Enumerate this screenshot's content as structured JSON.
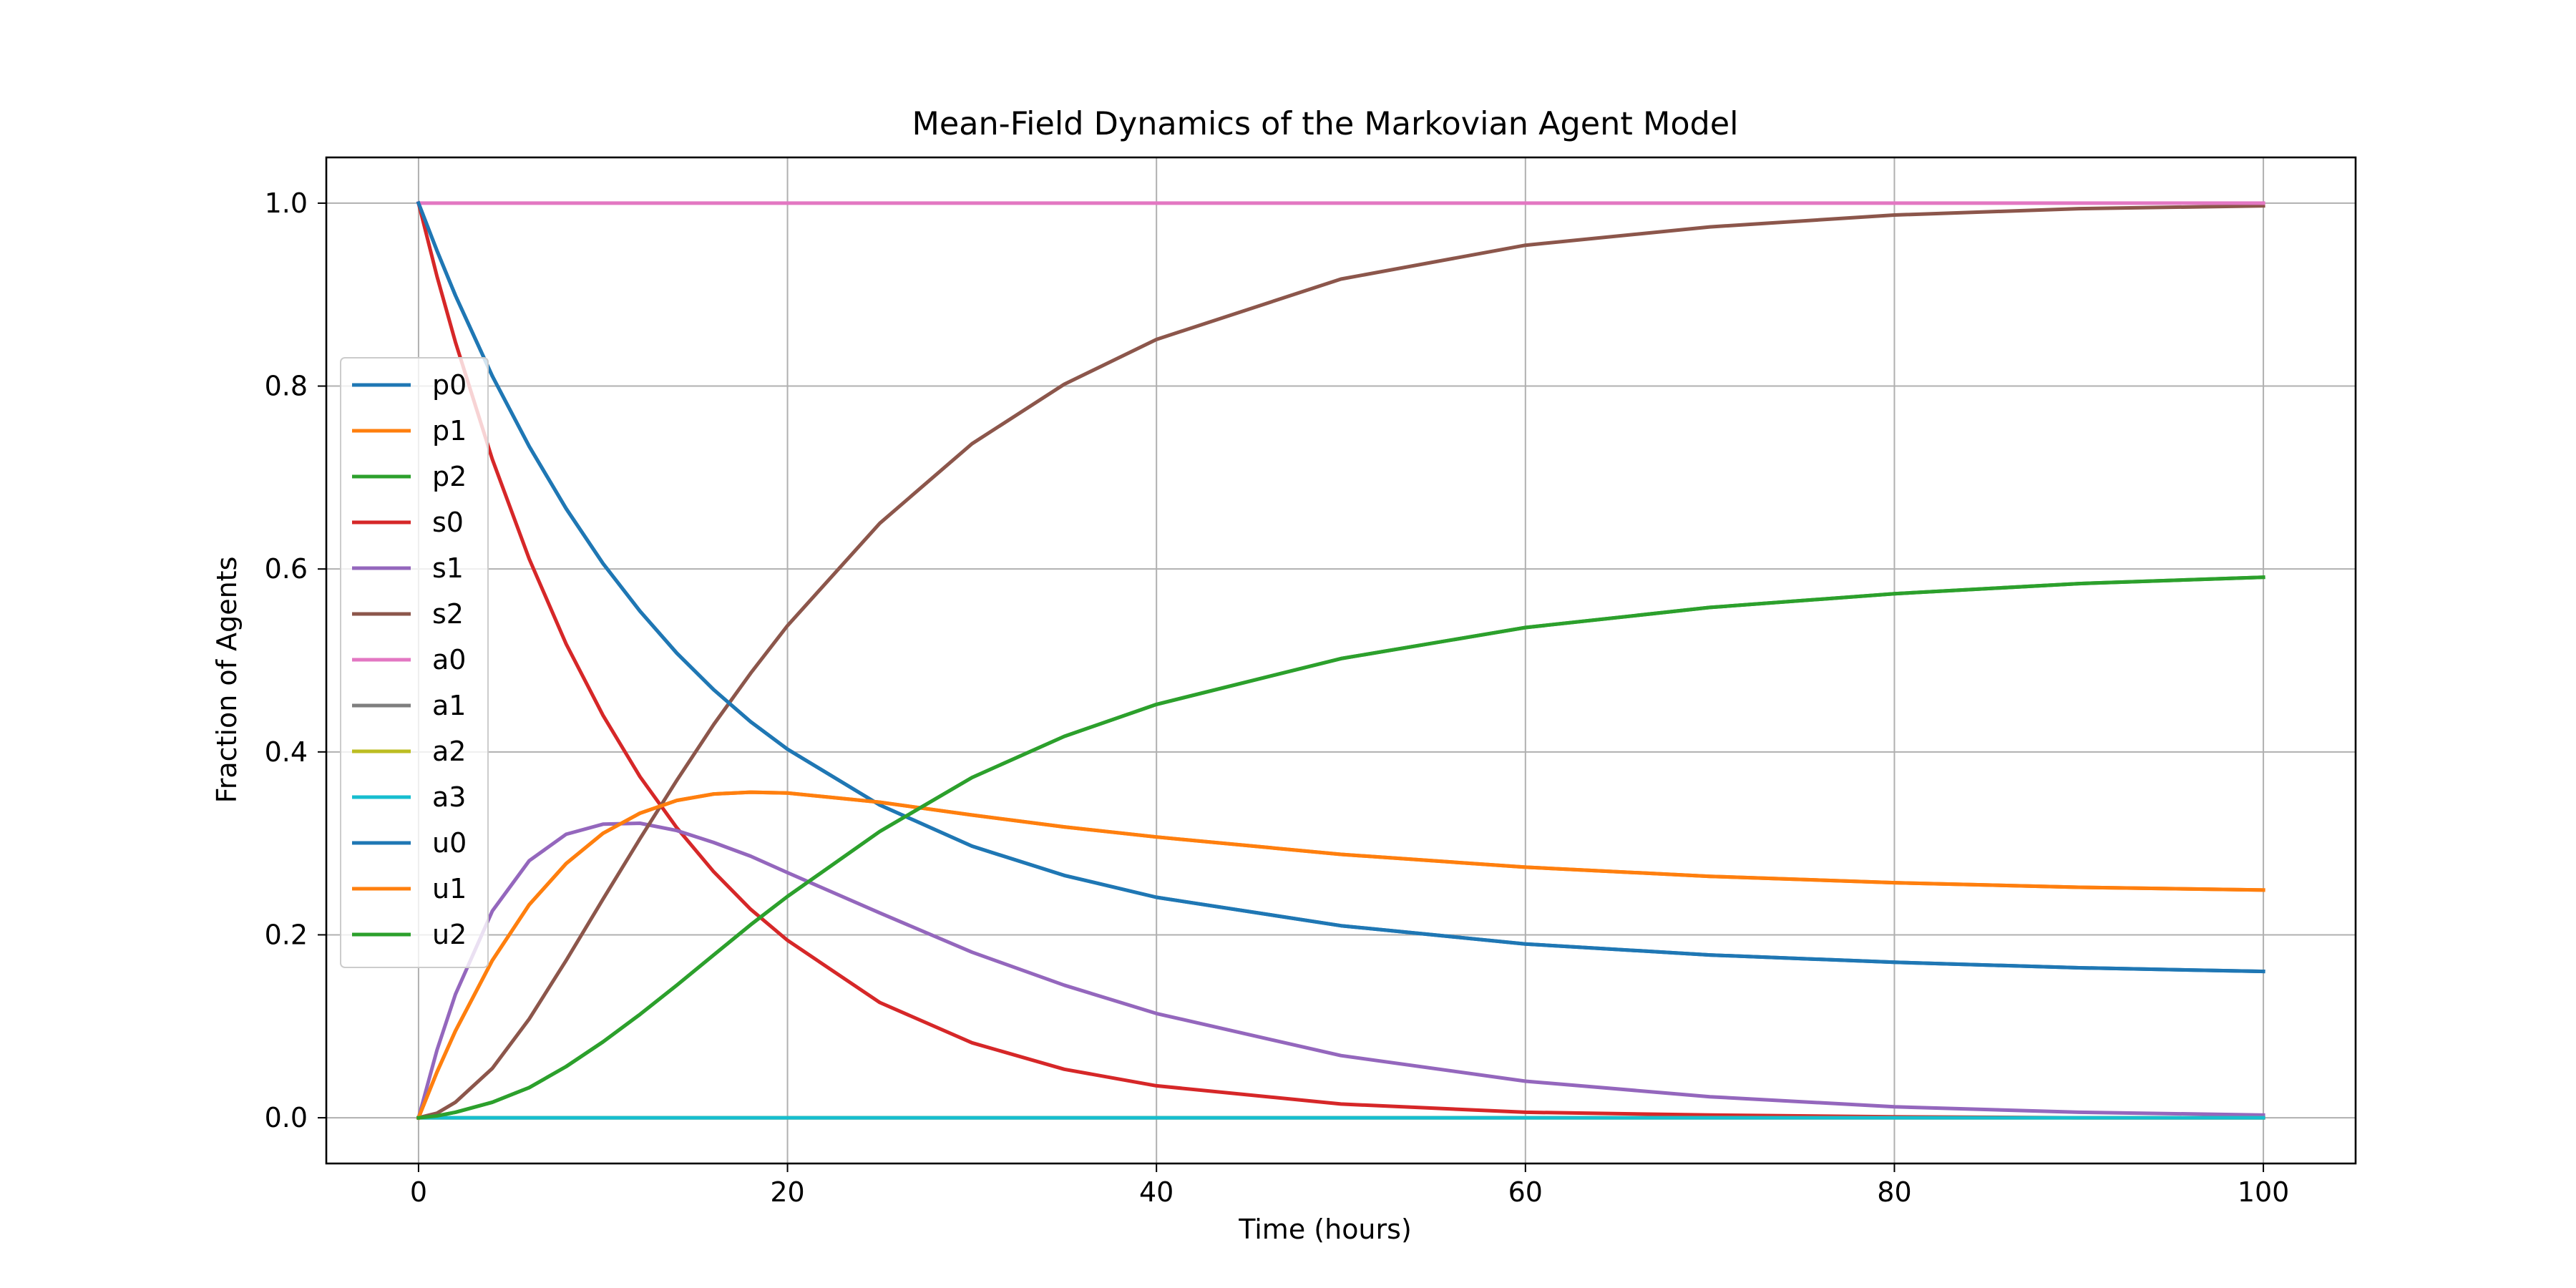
{
  "chart_data": {
    "type": "line",
    "title": "Mean-Field Dynamics of the Markovian Agent Model",
    "xlabel": "Time (hours)",
    "ylabel": "Fraction of Agents",
    "xlim": [
      -5,
      105
    ],
    "ylim": [
      -0.05,
      1.05
    ],
    "xticks": [
      0,
      20,
      40,
      60,
      80,
      100
    ],
    "yticks": [
      0.0,
      0.2,
      0.4,
      0.6,
      0.8,
      1.0
    ],
    "grid": true,
    "legend_position": "center-left",
    "x": [
      0,
      1,
      2,
      4,
      6,
      8,
      10,
      12,
      14,
      16,
      18,
      20,
      25,
      30,
      35,
      40,
      50,
      60,
      70,
      80,
      90,
      100
    ],
    "series": [
      {
        "name": "p0",
        "color": "#1f77b4",
        "values": [
          1.0,
          0.948,
          0.899,
          0.811,
          0.734,
          0.666,
          0.606,
          0.554,
          0.508,
          0.468,
          0.433,
          0.403,
          0.342,
          0.297,
          0.265,
          0.241,
          0.21,
          0.19,
          0.178,
          0.17,
          0.164,
          0.16
        ]
      },
      {
        "name": "p1",
        "color": "#ff7f0e",
        "values": [
          0.0,
          0.05,
          0.095,
          0.172,
          0.233,
          0.278,
          0.311,
          0.333,
          0.347,
          0.354,
          0.356,
          0.355,
          0.345,
          0.331,
          0.318,
          0.307,
          0.288,
          0.274,
          0.264,
          0.257,
          0.252,
          0.249
        ]
      },
      {
        "name": "p2",
        "color": "#2ca02c",
        "values": [
          0.0,
          0.002,
          0.006,
          0.017,
          0.033,
          0.056,
          0.083,
          0.113,
          0.145,
          0.178,
          0.211,
          0.242,
          0.313,
          0.372,
          0.417,
          0.452,
          0.502,
          0.536,
          0.558,
          0.573,
          0.584,
          0.591
        ]
      },
      {
        "name": "s0",
        "color": "#d62728",
        "values": [
          1.0,
          0.92,
          0.848,
          0.72,
          0.611,
          0.518,
          0.44,
          0.373,
          0.317,
          0.269,
          0.228,
          0.194,
          0.126,
          0.082,
          0.053,
          0.035,
          0.015,
          0.006,
          0.003,
          0.001,
          0.0,
          0.0
        ]
      },
      {
        "name": "s1",
        "color": "#9467bd",
        "values": [
          0.0,
          0.074,
          0.135,
          0.226,
          0.281,
          0.31,
          0.321,
          0.322,
          0.314,
          0.301,
          0.286,
          0.268,
          0.224,
          0.181,
          0.145,
          0.114,
          0.068,
          0.04,
          0.023,
          0.012,
          0.006,
          0.003
        ]
      },
      {
        "name": "s2",
        "color": "#8c564b",
        "values": [
          0.0,
          0.005,
          0.017,
          0.054,
          0.108,
          0.172,
          0.239,
          0.305,
          0.369,
          0.43,
          0.486,
          0.538,
          0.65,
          0.737,
          0.802,
          0.851,
          0.917,
          0.954,
          0.974,
          0.987,
          0.994,
          0.997
        ]
      },
      {
        "name": "a0",
        "color": "#e377c2",
        "values": [
          1.0,
          1.0,
          1.0,
          1.0,
          1.0,
          1.0,
          1.0,
          1.0,
          1.0,
          1.0,
          1.0,
          1.0,
          1.0,
          1.0,
          1.0,
          1.0,
          1.0,
          1.0,
          1.0,
          1.0,
          1.0,
          1.0
        ]
      },
      {
        "name": "a1",
        "color": "#7f7f7f",
        "values": [
          0.0,
          0.0,
          0.0,
          0.0,
          0.0,
          0.0,
          0.0,
          0.0,
          0.0,
          0.0,
          0.0,
          0.0,
          0.0,
          0.0,
          0.0,
          0.0,
          0.0,
          0.0,
          0.0,
          0.0,
          0.0,
          0.0
        ]
      },
      {
        "name": "a2",
        "color": "#bcbd22",
        "values": [
          0.0,
          0.0,
          0.0,
          0.0,
          0.0,
          0.0,
          0.0,
          0.0,
          0.0,
          0.0,
          0.0,
          0.0,
          0.0,
          0.0,
          0.0,
          0.0,
          0.0,
          0.0,
          0.0,
          0.0,
          0.0,
          0.0
        ]
      },
      {
        "name": "a3",
        "color": "#17becf",
        "values": [
          0.0,
          0.0,
          0.0,
          0.0,
          0.0,
          0.0,
          0.0,
          0.0,
          0.0,
          0.0,
          0.0,
          0.0,
          0.0,
          0.0,
          0.0,
          0.0,
          0.0,
          0.0,
          0.0,
          0.0,
          0.0,
          0.0
        ]
      },
      {
        "name": "u0",
        "color": "#1f77b4",
        "values": [
          1.0,
          0.948,
          0.899,
          0.811,
          0.734,
          0.666,
          0.606,
          0.554,
          0.508,
          0.468,
          0.433,
          0.403,
          0.342,
          0.297,
          0.265,
          0.241,
          0.21,
          0.19,
          0.178,
          0.17,
          0.164,
          0.16
        ]
      },
      {
        "name": "u1",
        "color": "#ff7f0e",
        "values": [
          0.0,
          0.05,
          0.095,
          0.172,
          0.233,
          0.278,
          0.311,
          0.333,
          0.347,
          0.354,
          0.356,
          0.355,
          0.345,
          0.331,
          0.318,
          0.307,
          0.288,
          0.274,
          0.264,
          0.257,
          0.252,
          0.249
        ]
      },
      {
        "name": "u2",
        "color": "#2ca02c",
        "values": [
          0.0,
          0.002,
          0.006,
          0.017,
          0.033,
          0.056,
          0.083,
          0.113,
          0.145,
          0.178,
          0.211,
          0.242,
          0.313,
          0.372,
          0.417,
          0.452,
          0.502,
          0.536,
          0.558,
          0.573,
          0.584,
          0.591
        ]
      }
    ]
  }
}
